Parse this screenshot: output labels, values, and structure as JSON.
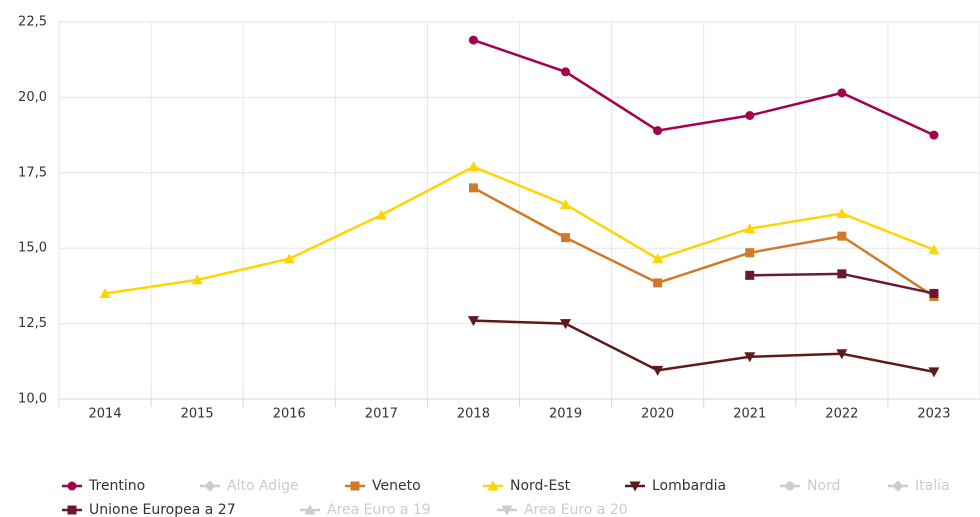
{
  "chart_data": {
    "type": "line",
    "categories": [
      "2014",
      "2015",
      "2016",
      "2017",
      "2018",
      "2019",
      "2020",
      "2021",
      "2022",
      "2023"
    ],
    "ylim": [
      10,
      22.5
    ],
    "yticks": [
      {
        "value": 10,
        "label": "10,0"
      },
      {
        "value": 12.5,
        "label": "12,5"
      },
      {
        "value": 15,
        "label": "15,0"
      },
      {
        "value": 17.5,
        "label": "17,5"
      },
      {
        "value": 20,
        "label": "20,0"
      },
      {
        "value": 22.5,
        "label": "22,5"
      }
    ],
    "grid": true,
    "legend": "bottom",
    "series": [
      {
        "name": "Trentino",
        "color": "#a3004e",
        "marker": "circle",
        "visible": true,
        "values": [
          null,
          null,
          null,
          null,
          21.9,
          20.85,
          18.9,
          19.4,
          20.15,
          18.75
        ]
      },
      {
        "name": "Alto Adige",
        "color": "#cccccc",
        "marker": "diamond",
        "visible": false,
        "values": [
          null,
          null,
          null,
          null,
          null,
          null,
          null,
          null,
          null,
          null
        ]
      },
      {
        "name": "Veneto",
        "color": "#d07a27",
        "marker": "square",
        "visible": true,
        "values": [
          null,
          null,
          null,
          null,
          17.0,
          15.35,
          13.85,
          14.85,
          15.4,
          13.4
        ]
      },
      {
        "name": "Nord-Est",
        "color": "#ffd500",
        "marker": "triangle",
        "visible": true,
        "values": [
          13.5,
          13.95,
          14.65,
          16.1,
          17.7,
          16.45,
          14.65,
          15.65,
          16.15,
          14.95
        ]
      },
      {
        "name": "Lombardia",
        "color": "#5c1a1a",
        "marker": "triangle-down",
        "visible": true,
        "values": [
          null,
          null,
          null,
          null,
          12.6,
          12.5,
          10.95,
          11.4,
          11.5,
          10.9
        ]
      },
      {
        "name": "Nord",
        "color": "#cccccc",
        "marker": "circle",
        "visible": false,
        "values": [
          null,
          null,
          null,
          null,
          null,
          null,
          null,
          null,
          null,
          null
        ]
      },
      {
        "name": "Italia",
        "color": "#cccccc",
        "marker": "diamond",
        "visible": false,
        "values": [
          null,
          null,
          null,
          null,
          null,
          null,
          null,
          null,
          null,
          null
        ]
      },
      {
        "name": "Unione Europea a 27",
        "color": "#6b1836",
        "marker": "square",
        "visible": true,
        "values": [
          null,
          null,
          null,
          null,
          null,
          null,
          null,
          14.1,
          14.15,
          13.5
        ]
      },
      {
        "name": "Area Euro a 19",
        "color": "#cccccc",
        "marker": "triangle",
        "visible": false,
        "values": [
          null,
          null,
          null,
          null,
          null,
          null,
          null,
          null,
          null,
          null
        ]
      },
      {
        "name": "Area Euro a 20",
        "color": "#cccccc",
        "marker": "triangle-down",
        "visible": false,
        "values": [
          null,
          null,
          null,
          null,
          null,
          null,
          null,
          null,
          null,
          null
        ]
      }
    ]
  }
}
